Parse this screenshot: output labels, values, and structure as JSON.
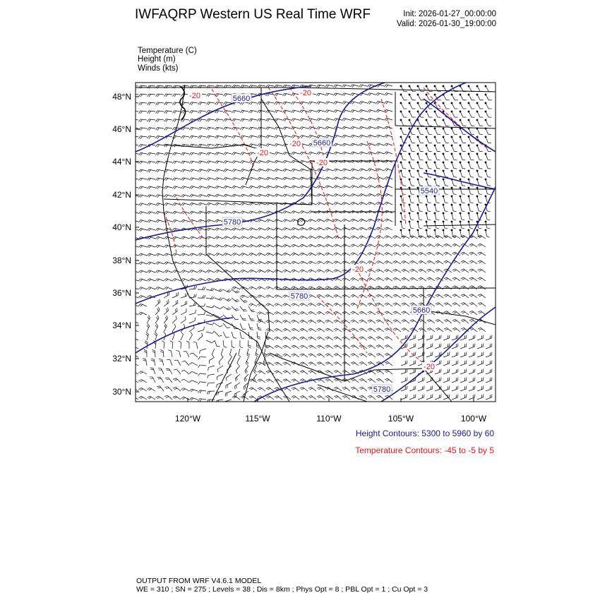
{
  "header": {
    "title": "IWFAQRP Western US Real Time WRF",
    "init": "Init: 2026-01-27_00:00:00",
    "valid": "Valid: 2026-01-30_19:00:00"
  },
  "fields": [
    "Temperature   (C)",
    "Height   (m)",
    "Winds   (kts)"
  ],
  "map": {
    "lat_labels": [
      "48°N",
      "46°N",
      "44°N",
      "42°N",
      "40°N",
      "38°N",
      "36°N",
      "34°N",
      "32°N",
      "30°N"
    ],
    "lon_labels": [
      "120°W",
      "115°W",
      "110°W",
      "105°W",
      "100°W"
    ],
    "height_contour_labels": [
      "5660",
      "5660",
      "5540",
      "5780",
      "5780",
      "5660",
      "5780"
    ],
    "temperature_contour_labels": [
      "-20",
      "-20",
      "-20",
      "-20",
      "-20",
      "-20",
      "-20"
    ],
    "colors": {
      "height_contour": "#1a1a8c",
      "temperature_contour": "#e01818",
      "borders": "#000000",
      "wind_barbs": "#000000"
    }
  },
  "legend": {
    "height": "Height Contours: 5300 to 5960 by 60",
    "temperature": "Temperature Contours: -45 to -5 by 5"
  },
  "footer": {
    "line1": "OUTPUT FROM WRF V4.6.1 MODEL",
    "line2": "WE = 310 ; SN = 275 ; Levels = 38 ; Dis = 8km ; Phys Opt = 8 ; PBL Opt = 1 ; Cu Opt = 3"
  }
}
